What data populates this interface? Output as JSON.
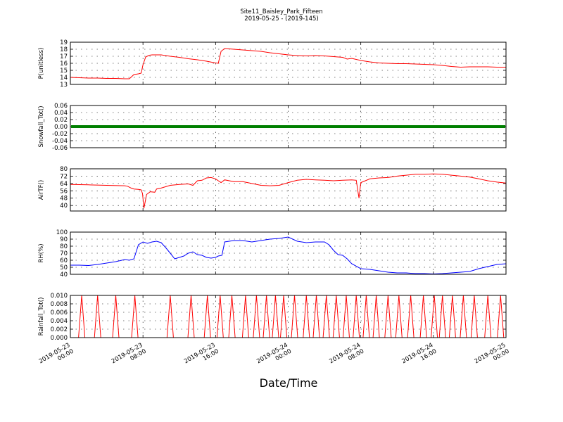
{
  "figure": {
    "title": "Site11_Baisley_Park_Fifteen",
    "subtitle": "2019-05-25 - (2019-145)",
    "xlabel": "Date/Time"
  },
  "chart_data": {
    "type": "line",
    "x_ticks": [
      {
        "value": 0,
        "line1": "2019-05-23",
        "line2": "00:00"
      },
      {
        "value": 8,
        "line1": "2019-05-23",
        "line2": "08:00"
      },
      {
        "value": 16,
        "line1": "2019-05-23",
        "line2": "16:00"
      },
      {
        "value": 24,
        "line1": "2019-05-24",
        "line2": "00:00"
      },
      {
        "value": 32,
        "line1": "2019-05-24",
        "line2": "08:00"
      },
      {
        "value": 40,
        "line1": "2019-05-24",
        "line2": "16:00"
      },
      {
        "value": 48,
        "line1": "2019-05-25",
        "line2": "00:00"
      }
    ],
    "xlim": [
      0,
      48
    ],
    "grid": true,
    "panels": [
      {
        "ylabel": "P(unitless)",
        "ylim": [
          13,
          19
        ],
        "yticks": [
          "13",
          "14",
          "15",
          "16",
          "17",
          "18",
          "19"
        ],
        "ytick_values": [
          13,
          14,
          15,
          16,
          17,
          18,
          19
        ],
        "color": "#ff0000",
        "marker": false,
        "x": [
          0,
          1,
          2,
          3,
          4,
          5,
          6,
          6.5,
          7,
          7.5,
          7.8,
          8,
          8.3,
          8.7,
          9,
          10,
          11,
          12,
          13,
          14,
          15,
          16,
          16.3,
          16.6,
          17,
          18,
          19,
          20,
          21,
          22,
          23,
          24,
          25,
          26,
          27,
          28,
          29,
          30,
          30.5,
          31,
          31.5,
          32,
          33,
          34,
          35,
          36,
          37,
          38,
          39,
          40,
          41,
          42,
          43,
          44,
          45,
          46,
          47,
          48
        ],
        "y": [
          14,
          13.95,
          13.9,
          13.9,
          13.85,
          13.85,
          13.8,
          13.8,
          14.4,
          14.5,
          14.6,
          15.8,
          16.9,
          17.15,
          17.2,
          17.2,
          17.0,
          16.85,
          16.65,
          16.5,
          16.3,
          16.05,
          16.0,
          17.7,
          18.1,
          18.0,
          17.9,
          17.8,
          17.7,
          17.5,
          17.35,
          17.2,
          17.1,
          17.05,
          17.1,
          17.05,
          16.95,
          16.85,
          16.6,
          16.7,
          16.55,
          16.4,
          16.2,
          16.05,
          16.0,
          15.95,
          15.95,
          15.9,
          15.85,
          15.8,
          15.7,
          15.55,
          15.45,
          15.5,
          15.5,
          15.5,
          15.45,
          15.45
        ]
      },
      {
        "ylabel": "Snowfall_Tot()",
        "ylim": [
          -0.06,
          0.06
        ],
        "yticks": [
          "-0.06",
          "-0.04",
          "-0.02",
          "0.00",
          "0.02",
          "0.04",
          "0.06"
        ],
        "ytick_values": [
          -0.06,
          -0.04,
          -0.02,
          0,
          0.02,
          0.04,
          0.06
        ],
        "color": "#008000",
        "marker": true,
        "x": [
          0,
          48
        ],
        "y": [
          0,
          0
        ]
      },
      {
        "ylabel": "AirTF()",
        "ylim": [
          34,
          80
        ],
        "yticks": [
          "40",
          "48",
          "56",
          "64",
          "72",
          "80"
        ],
        "ytick_values": [
          40,
          48,
          56,
          64,
          72,
          80
        ],
        "color": "#ff0000",
        "marker": false,
        "x": [
          0,
          2,
          4,
          6,
          6.3,
          6.7,
          7,
          7.5,
          7.8,
          7.95,
          8.1,
          8.4,
          8.8,
          9.3,
          9.5,
          10,
          11,
          12,
          13,
          13.5,
          14,
          14.5,
          15,
          15.5,
          16,
          16.3,
          16.6,
          17,
          18,
          19,
          20,
          21,
          22,
          23,
          24,
          25,
          26,
          27,
          28,
          29,
          30,
          31,
          31.5,
          31.8,
          32,
          32.5,
          33,
          34,
          35,
          36,
          37,
          38,
          39,
          40,
          41,
          42,
          43,
          44,
          45,
          46,
          47,
          48
        ],
        "y": [
          63,
          62.5,
          62,
          61.5,
          61,
          59,
          58,
          57.5,
          57,
          53,
          37,
          52,
          55,
          54.5,
          58,
          59,
          62,
          63,
          63.5,
          62,
          67,
          67.5,
          70,
          70.5,
          69,
          67,
          65,
          68,
          66,
          66,
          64,
          62,
          61.5,
          62,
          65,
          67.5,
          68.5,
          68,
          67.5,
          67,
          67.5,
          68,
          67.5,
          48,
          65,
          67,
          69,
          70,
          70.5,
          72,
          73,
          74,
          74,
          74.5,
          74,
          73,
          72,
          71,
          69,
          67,
          65.5,
          64.5
        ]
      },
      {
        "ylabel": "RH(%)",
        "ylim": [
          40,
          100
        ],
        "yticks": [
          "40",
          "50",
          "60",
          "70",
          "80",
          "90",
          "100"
        ],
        "ytick_values": [
          40,
          50,
          60,
          70,
          80,
          90,
          100
        ],
        "color": "#0000ff",
        "marker": false,
        "x": [
          0,
          1,
          2,
          3,
          4,
          5,
          6,
          6.5,
          7,
          7.5,
          8,
          8.5,
          9,
          9.5,
          10,
          10.5,
          11,
          11.5,
          12,
          12.5,
          13,
          13.5,
          14,
          14.5,
          15,
          15.5,
          16,
          16.3,
          16.7,
          17,
          17.5,
          18,
          19,
          20,
          21,
          22,
          23,
          24,
          25,
          26,
          27,
          28,
          28.5,
          29,
          29.5,
          30,
          30.5,
          31,
          32,
          33,
          34,
          35,
          36,
          37,
          38,
          39,
          40,
          41,
          42,
          43,
          44,
          45,
          46,
          47,
          48
        ],
        "y": [
          53,
          53,
          52.5,
          54,
          56,
          58,
          61,
          60,
          62,
          82,
          86,
          84,
          86,
          87,
          85,
          78,
          70,
          62,
          64,
          66,
          70,
          72,
          68,
          67,
          64,
          63,
          64,
          66,
          67,
          86,
          87,
          88,
          88,
          86,
          88,
          90,
          91,
          93,
          87,
          85,
          86,
          86,
          82,
          74,
          68,
          67,
          62,
          55,
          48,
          47,
          45,
          43,
          42,
          42,
          41,
          41,
          40.5,
          41,
          42,
          43,
          44,
          48,
          51,
          54,
          55
        ]
      },
      {
        "ylabel": "Rainfall_Tot()",
        "ylim": [
          0,
          0.01
        ],
        "yticks": [
          "0.000",
          "0.002",
          "0.004",
          "0.006",
          "0.008",
          "0.010"
        ],
        "ytick_values": [
          0,
          0.002,
          0.004,
          0.006,
          0.008,
          0.01
        ],
        "color": "#ff0000",
        "marker": false,
        "spikes": [
          1.25,
          3.0,
          5.0,
          7.1,
          11.0,
          13.3,
          15.1,
          16.5,
          17.8,
          19.3,
          20.5,
          21.6,
          22.6,
          23.5,
          24.7,
          26.0,
          27.1,
          28.2,
          29.3,
          30.4,
          31.5,
          32.6,
          33.7,
          35.0,
          36.2,
          37.5,
          38.9,
          40.1,
          41.0,
          42.1,
          43.3,
          44.5,
          46.0,
          47.4
        ],
        "spike_value": 0.01,
        "spike_halfwidth": 0.35
      }
    ]
  }
}
